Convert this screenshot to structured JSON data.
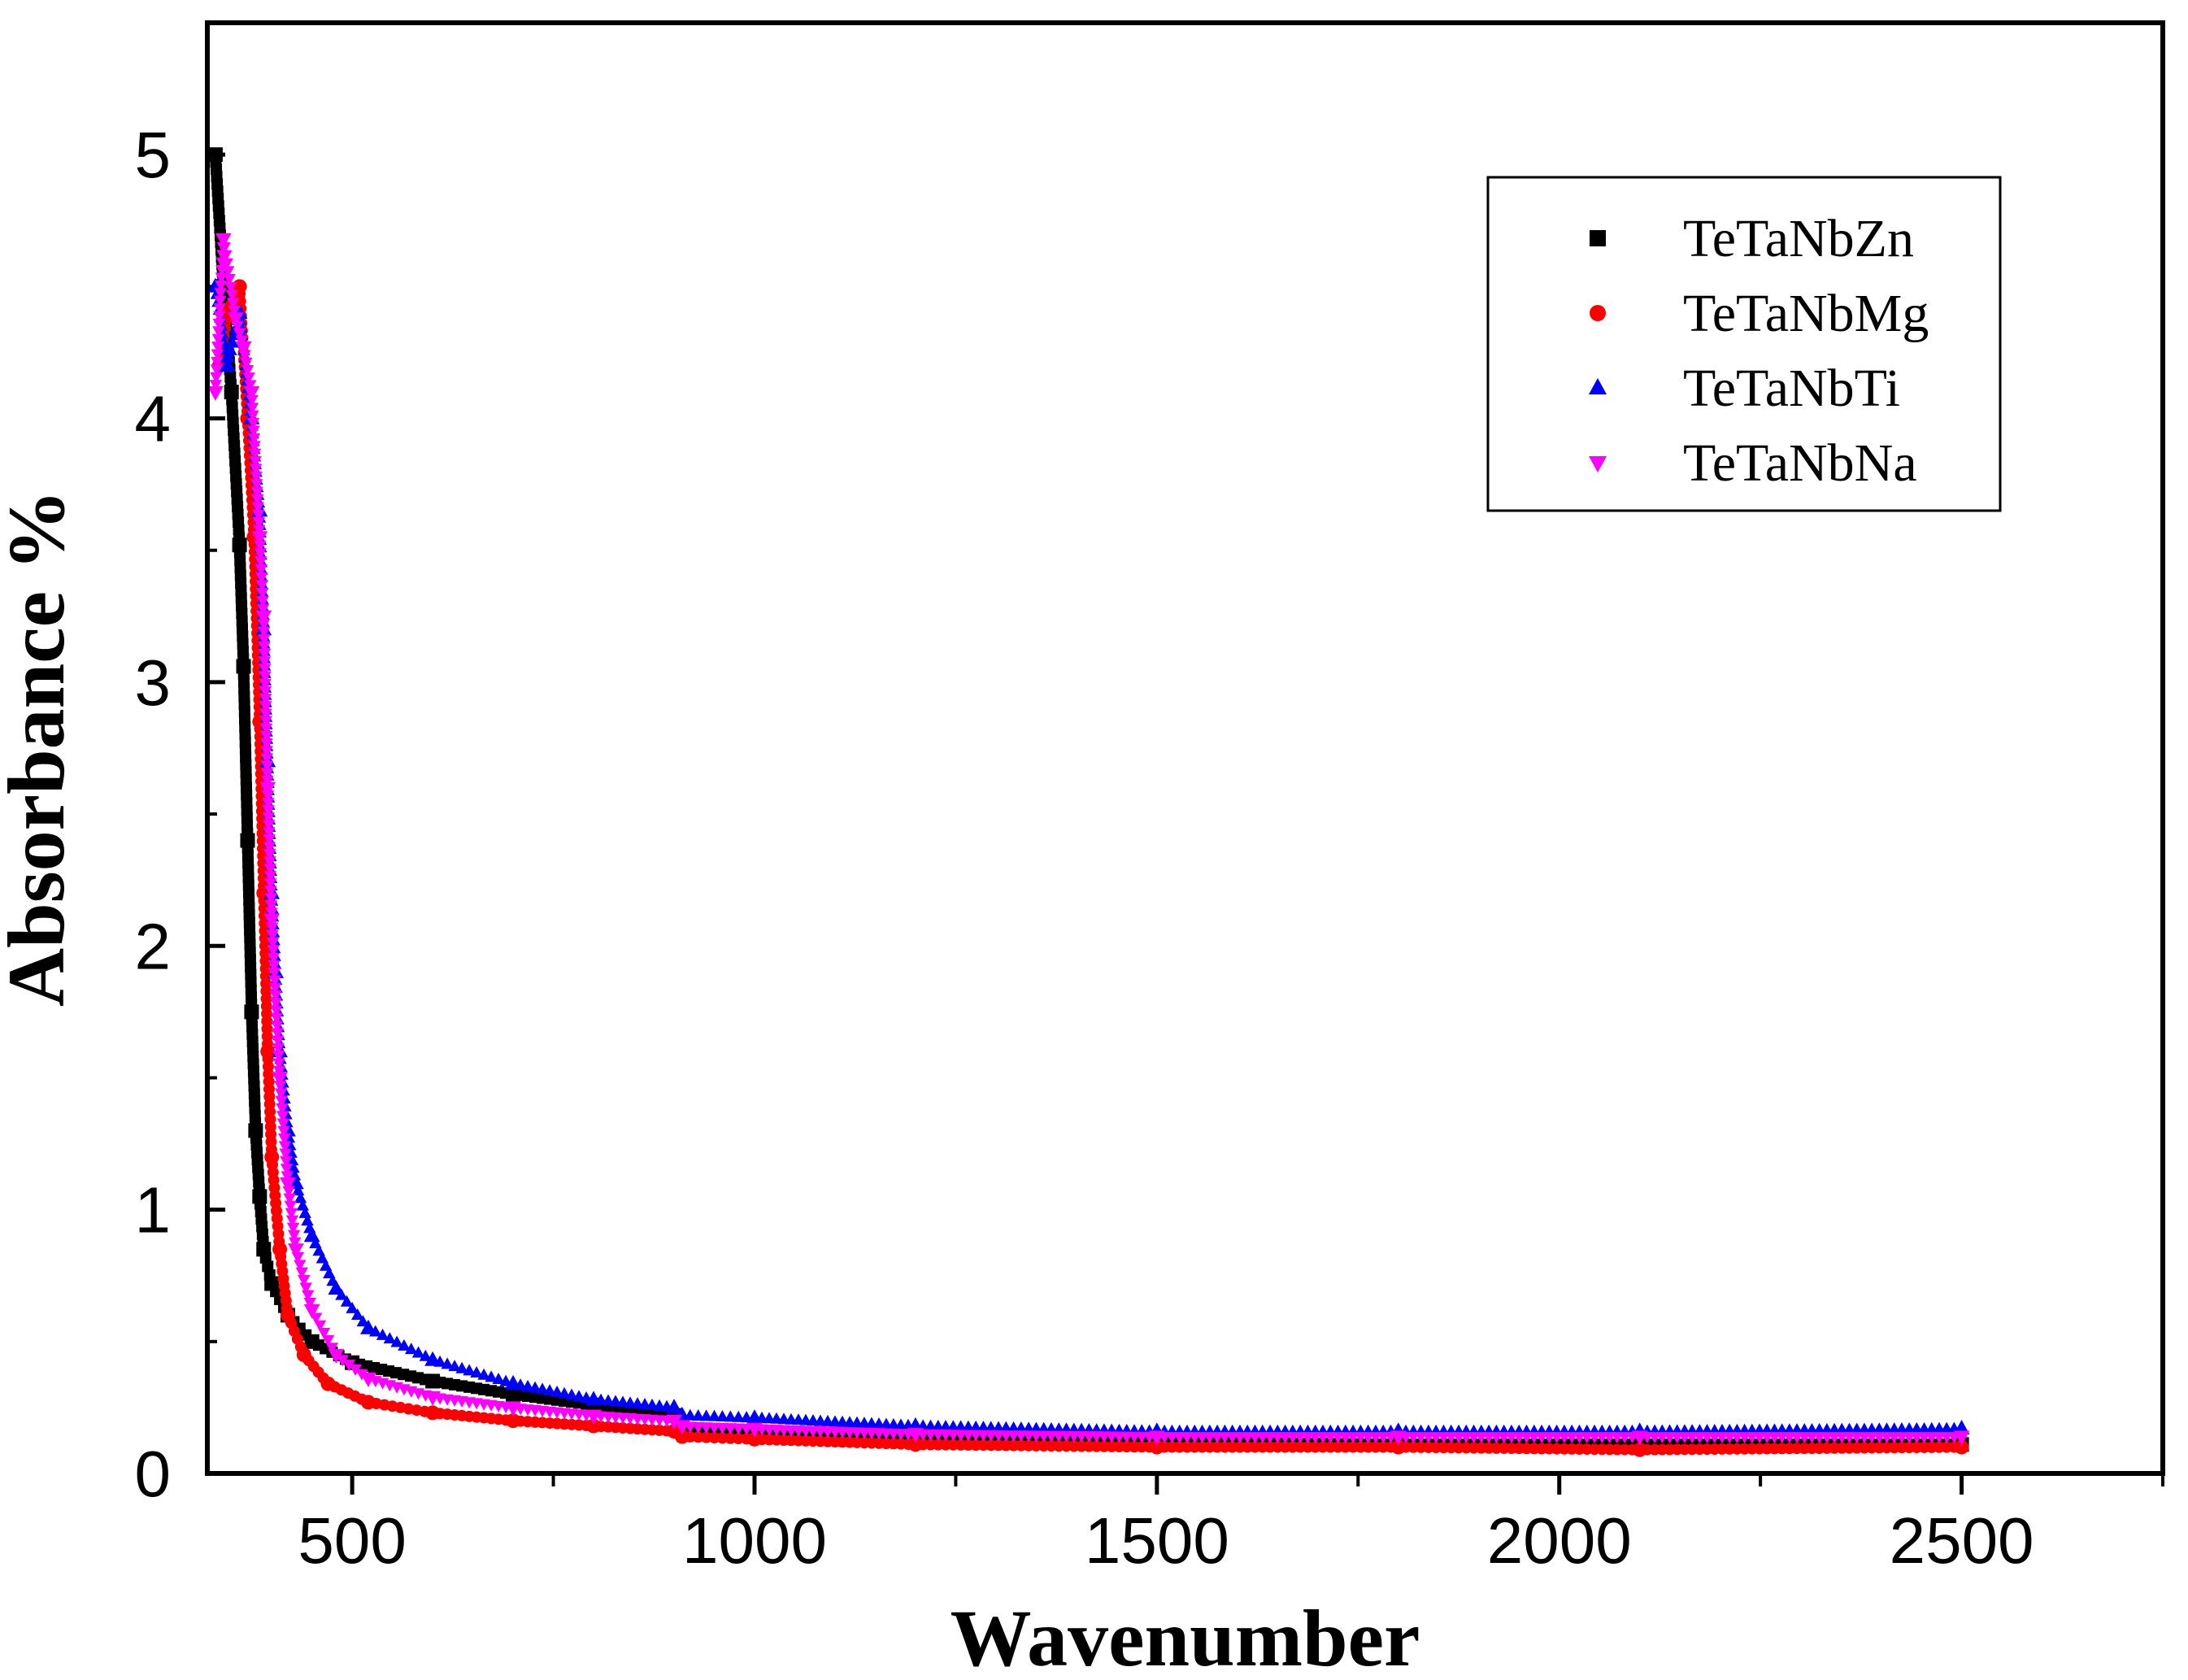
{
  "chart_data": {
    "type": "scatter",
    "title": "",
    "xlabel": "Wavenumber",
    "ylabel": "Absorbance %",
    "xlim": [
      320,
      2750
    ],
    "ylim": [
      0,
      5.5
    ],
    "x_ticks": [
      500,
      1000,
      1500,
      2000,
      2500
    ],
    "x_minor_ticks": [
      750,
      1250,
      1750,
      2250,
      2750
    ],
    "y_ticks": [
      0,
      1,
      2,
      3,
      4,
      5
    ],
    "x_tick_labels": [
      "500",
      "1000",
      "1500",
      "2000",
      "2500"
    ],
    "y_tick_labels": [
      "0",
      "1",
      "2",
      "3",
      "4",
      "5"
    ],
    "legend_position": "top-right",
    "series": [
      {
        "name": "TeTaNbZn",
        "color": "#000000",
        "marker": "square",
        "x": [
          330,
          340,
          350,
          360,
          365,
          370,
          375,
          380,
          385,
          390,
          400,
          420,
          450,
          500,
          600,
          700,
          800,
          900,
          910,
          1000,
          1200,
          1500,
          1800,
          2100,
          2500
        ],
        "y": [
          5.0,
          4.5,
          4.1,
          3.52,
          3.06,
          2.4,
          1.75,
          1.3,
          1.05,
          0.85,
          0.72,
          0.6,
          0.5,
          0.42,
          0.35,
          0.3,
          0.26,
          0.22,
          0.17,
          0.15,
          0.13,
          0.12,
          0.11,
          0.11,
          0.11
        ]
      },
      {
        "name": "TeTaNbMg",
        "color": "#ff0000",
        "marker": "circle",
        "x": [
          335,
          345,
          360,
          370,
          378,
          385,
          390,
          395,
          400,
          410,
          420,
          440,
          470,
          520,
          600,
          700,
          800,
          900,
          910,
          1000,
          1200,
          1500,
          1800,
          2100,
          2500
        ],
        "y": [
          4.2,
          4.4,
          4.5,
          4.0,
          3.55,
          2.85,
          2.2,
          1.6,
          1.2,
          0.85,
          0.6,
          0.45,
          0.34,
          0.27,
          0.23,
          0.2,
          0.18,
          0.16,
          0.14,
          0.13,
          0.11,
          0.1,
          0.1,
          0.09,
          0.1
        ]
      },
      {
        "name": "TeTaNbTi",
        "color": "#0000ff",
        "marker": "triangle-up",
        "x": [
          330,
          345,
          360,
          375,
          385,
          390,
          395,
          400,
          405,
          410,
          420,
          430,
          450,
          480,
          520,
          600,
          700,
          800,
          900,
          910,
          1000,
          1200,
          1500,
          1800,
          2100,
          2500
        ],
        "y": [
          4.5,
          4.2,
          4.4,
          4.0,
          3.65,
          3.2,
          2.7,
          2.2,
          1.9,
          1.6,
          1.3,
          1.1,
          0.9,
          0.7,
          0.55,
          0.43,
          0.34,
          0.28,
          0.25,
          0.22,
          0.21,
          0.18,
          0.16,
          0.16,
          0.16,
          0.17
        ]
      },
      {
        "name": "TeTaNbNa",
        "color": "#ff00ff",
        "marker": "triangle-down",
        "x": [
          330,
          340,
          355,
          365,
          375,
          385,
          390,
          395,
          400,
          410,
          420,
          430,
          450,
          480,
          520,
          600,
          700,
          800,
          900,
          910,
          1000,
          1200,
          1500,
          1800,
          2100,
          2500
        ],
        "y": [
          4.1,
          4.68,
          4.38,
          4.27,
          4.1,
          3.55,
          3.25,
          2.6,
          2.1,
          1.5,
          1.1,
          0.85,
          0.62,
          0.45,
          0.36,
          0.29,
          0.25,
          0.22,
          0.2,
          0.18,
          0.17,
          0.15,
          0.14,
          0.14,
          0.14,
          0.14
        ]
      }
    ]
  }
}
